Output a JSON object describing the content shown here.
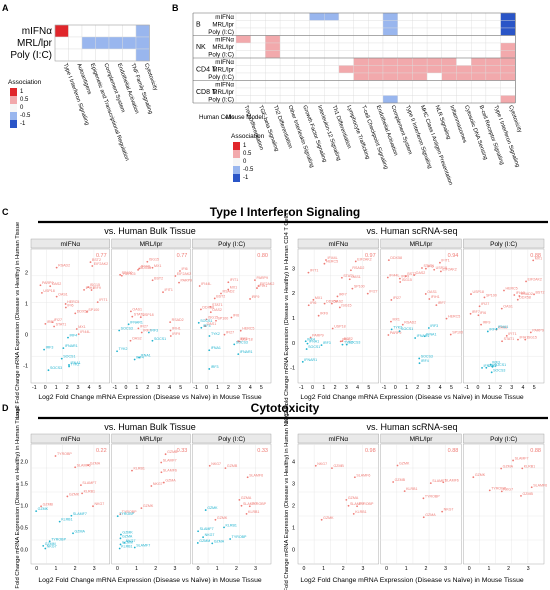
{
  "panelA": {
    "letter": "A",
    "rows": [
      "mIFNα",
      "MRL/lpr",
      "Poly (I:C)"
    ],
    "columns": [
      "Type I Interferon Signaling",
      "Autoantigens",
      "Epigenetic and Transcriptional Regulation",
      "Complement System",
      "Endothelial Activation",
      "TNF Family Signaling",
      "Cytotoxicity"
    ],
    "cells": [
      [
        0.8,
        0,
        0,
        0,
        0,
        0,
        -0.3
      ],
      [
        0,
        0,
        -0.5,
        -0.5,
        -0.5,
        -0.5,
        -0.5
      ],
      [
        0,
        0,
        0,
        0,
        0,
        0,
        -0.5
      ]
    ],
    "legend_title": "Association",
    "legend_ticks": [
      "1",
      "0.5",
      "0",
      "-0.5",
      "-1"
    ]
  },
  "panelB": {
    "letter": "B",
    "groups": [
      "B",
      "NK",
      "CD4 T",
      "CD8 T"
    ],
    "rows": [
      "mIFNα",
      "MRL/lpr",
      "Poly (I:C)"
    ],
    "columns": [
      "Treg Differentiation",
      "TGF-beta Signaling",
      "Th2 Differentiation",
      "Other Interleukin Signaling",
      "Growth Factor Signaling",
      "Interleukin-12 Signaling",
      "Th1 Differentiation",
      "Lymphocyte Trafficking",
      "T-cell Checkpoint Signaling",
      "Endothelial Activation",
      "Complement System",
      "Type II Interferon Signaling",
      "MHC Class I Antigen Presentation",
      "NLR Signaling",
      "Inflammasomes",
      "Cytosolic DNA Sensing",
      "B-cell Receptor Signaling",
      "Type I Interferon Signaling",
      "Cytotoxicity"
    ],
    "cells": [
      [
        0,
        0,
        0,
        0,
        0,
        -0.5,
        -0.5,
        0,
        0,
        0,
        -0.5,
        0,
        0,
        0,
        0,
        0,
        0,
        0,
        -1
      ],
      [
        0,
        0,
        0,
        0,
        0,
        0,
        0,
        0,
        0,
        0,
        -0.5,
        0,
        0,
        0,
        0,
        0,
        0,
        0,
        -0.8
      ],
      [
        0,
        0,
        0,
        0,
        0,
        0,
        0,
        0,
        0,
        0,
        -0.5,
        0,
        0,
        0,
        0,
        0,
        0,
        0,
        -1
      ],
      [
        0.5,
        0,
        0.4,
        0,
        0,
        0,
        0,
        0,
        0,
        0,
        0,
        0,
        0,
        0,
        0,
        0,
        0,
        0,
        0
      ],
      [
        0,
        0,
        0.4,
        0,
        0,
        0,
        0,
        0,
        0,
        0,
        0,
        0,
        0,
        0,
        0,
        0,
        0,
        0,
        0.6
      ],
      [
        0,
        0,
        0.4,
        0,
        0,
        0,
        0,
        0,
        0,
        0,
        0,
        0,
        0,
        0,
        0,
        0,
        0,
        0,
        0.7
      ],
      [
        0,
        0,
        0,
        0,
        0,
        0,
        0,
        0,
        0.4,
        0.5,
        0.5,
        0.5,
        0.5,
        0.5,
        0.5,
        0,
        0.5,
        0.5,
        0.3
      ],
      [
        0,
        0,
        0,
        0,
        0,
        0,
        0,
        0.3,
        0.4,
        0.5,
        0.5,
        0.5,
        0.5,
        0.5,
        0.5,
        0.5,
        0.5,
        0.5,
        0.3
      ],
      [
        0,
        0,
        0,
        0,
        0,
        0,
        0,
        0,
        0.4,
        0.5,
        0.5,
        0.5,
        0.5,
        0,
        0.5,
        0.5,
        0.5,
        0.5,
        0.5
      ],
      [
        0,
        0,
        0,
        0,
        0,
        0,
        0,
        0,
        0,
        0,
        0,
        0,
        0,
        0,
        0,
        0,
        0,
        0,
        0
      ],
      [
        0,
        0,
        0,
        0,
        0,
        0,
        0,
        0,
        0,
        0,
        0,
        0,
        0,
        0,
        0,
        0,
        0,
        0,
        0
      ],
      [
        0,
        0,
        0,
        0,
        0,
        0,
        0,
        0,
        0,
        0,
        -0.5,
        0,
        0,
        0,
        0,
        0,
        0,
        0,
        0.5
      ]
    ],
    "axis_left": "Human Cells",
    "axis_right": "Mouse Model",
    "legend_title": "Association",
    "legend_ticks": [
      "1",
      "0.5",
      "0",
      "-0.5",
      "-1"
    ]
  },
  "panelC": {
    "letter": "C",
    "title": "Type I Interferon Signaling",
    "subtitle_left": "vs. Human Bulk Tissue",
    "subtitle_right": "vs. Human scRNA-seq",
    "facets": [
      "mIFNα",
      "MRL/lpr",
      "Poly (I:C)"
    ],
    "r_bulk": [
      "0.77",
      "0.77",
      "0.80"
    ],
    "r_sc": [
      "0.97",
      "0.94",
      "0.88"
    ],
    "ylabel_left": "Log2 Fold Change mRNA Expression (Disease vs Healthy) in Human Tissue",
    "ylabel_right": "Log2 Fold Change mRNA Expression (Disease vs Healthy) in Human CD4 T Cells",
    "xlabel": "Log2 Fold Change mRNA Expression (Disease vs Naïve) in Mouse Tissue",
    "x_ticks": [
      "-1",
      "0",
      "1",
      "2",
      "3",
      "4",
      "5"
    ],
    "y_ticks_bulk": [
      "-1",
      "0",
      "1",
      "2"
    ],
    "y_ticks_sc": [
      "-1",
      "0",
      "1",
      "2",
      "3"
    ],
    "gene_labels_red": [
      "IFI44L",
      "RSAD2",
      "IFI27",
      "OAS2",
      "ISG15",
      "MX1",
      "IFIT1",
      "OAS1",
      "IFI6",
      "STAT1",
      "IRF7",
      "PARP9",
      "HERC5",
      "DDX58",
      "IFIH1",
      "BST2",
      "USP18",
      "EIF2AK2",
      "SP100",
      "IRF9"
    ],
    "gene_labels_cyan": [
      "IFNA1",
      "SOCS1",
      "SOCS3",
      "TYK2",
      "IFNAR1",
      "IRF4",
      "IRF3"
    ]
  },
  "panelD": {
    "letter": "D",
    "title": "Cytotoxicity",
    "subtitle_left": "vs. Human Bulk Tissue",
    "subtitle_right": "vs. Human scRNA-seq",
    "facets": [
      "mIFNα",
      "MRL/lpr",
      "Poly (I:C)"
    ],
    "r_bulk": [
      "0.22",
      "0.33",
      "0.33"
    ],
    "r_sc": [
      "0.98",
      "0.88",
      "0.88"
    ],
    "ylabel_left": "Log2 Fold Change mRNA Expression (Disease vs Healthy) in Human Tissue",
    "ylabel_right": "Log2 Fold Change mRNA Expression (Disease vs Healthy) in Human NK Cells",
    "xlabel": "Log2 Fold Change mRNA Expression (Disease vs Naïve) in Mouse Tissue",
    "x_ticks": [
      "0",
      "1",
      "2",
      "3"
    ],
    "y_ticks_bulk": [
      "0.0",
      "0.5",
      "1.0",
      "1.5",
      "2.0"
    ],
    "y_ticks_sc": [
      "0",
      "1",
      "2",
      "3",
      "4"
    ],
    "gene_labels_red": [
      "GZMB",
      "KLRB1",
      "SLAMF6",
      "SLAMF7",
      "NKG7",
      "GZMA",
      "TYROBP",
      "GZMK"
    ],
    "gene_labels_cyan": [
      "KLRB1",
      "NKG7",
      "GZMA",
      "GZMM",
      "SLAMF7",
      "TYROBP",
      "GZMK"
    ]
  },
  "colors": {
    "red": "#e0262b",
    "blue": "#2a55c7",
    "lightred": "#f2a9ac",
    "lightblue": "#99b6ee",
    "grid": "#e3e3e3",
    "scatter_red": "#ef7a74",
    "scatter_cyan": "#1fb3cf"
  }
}
